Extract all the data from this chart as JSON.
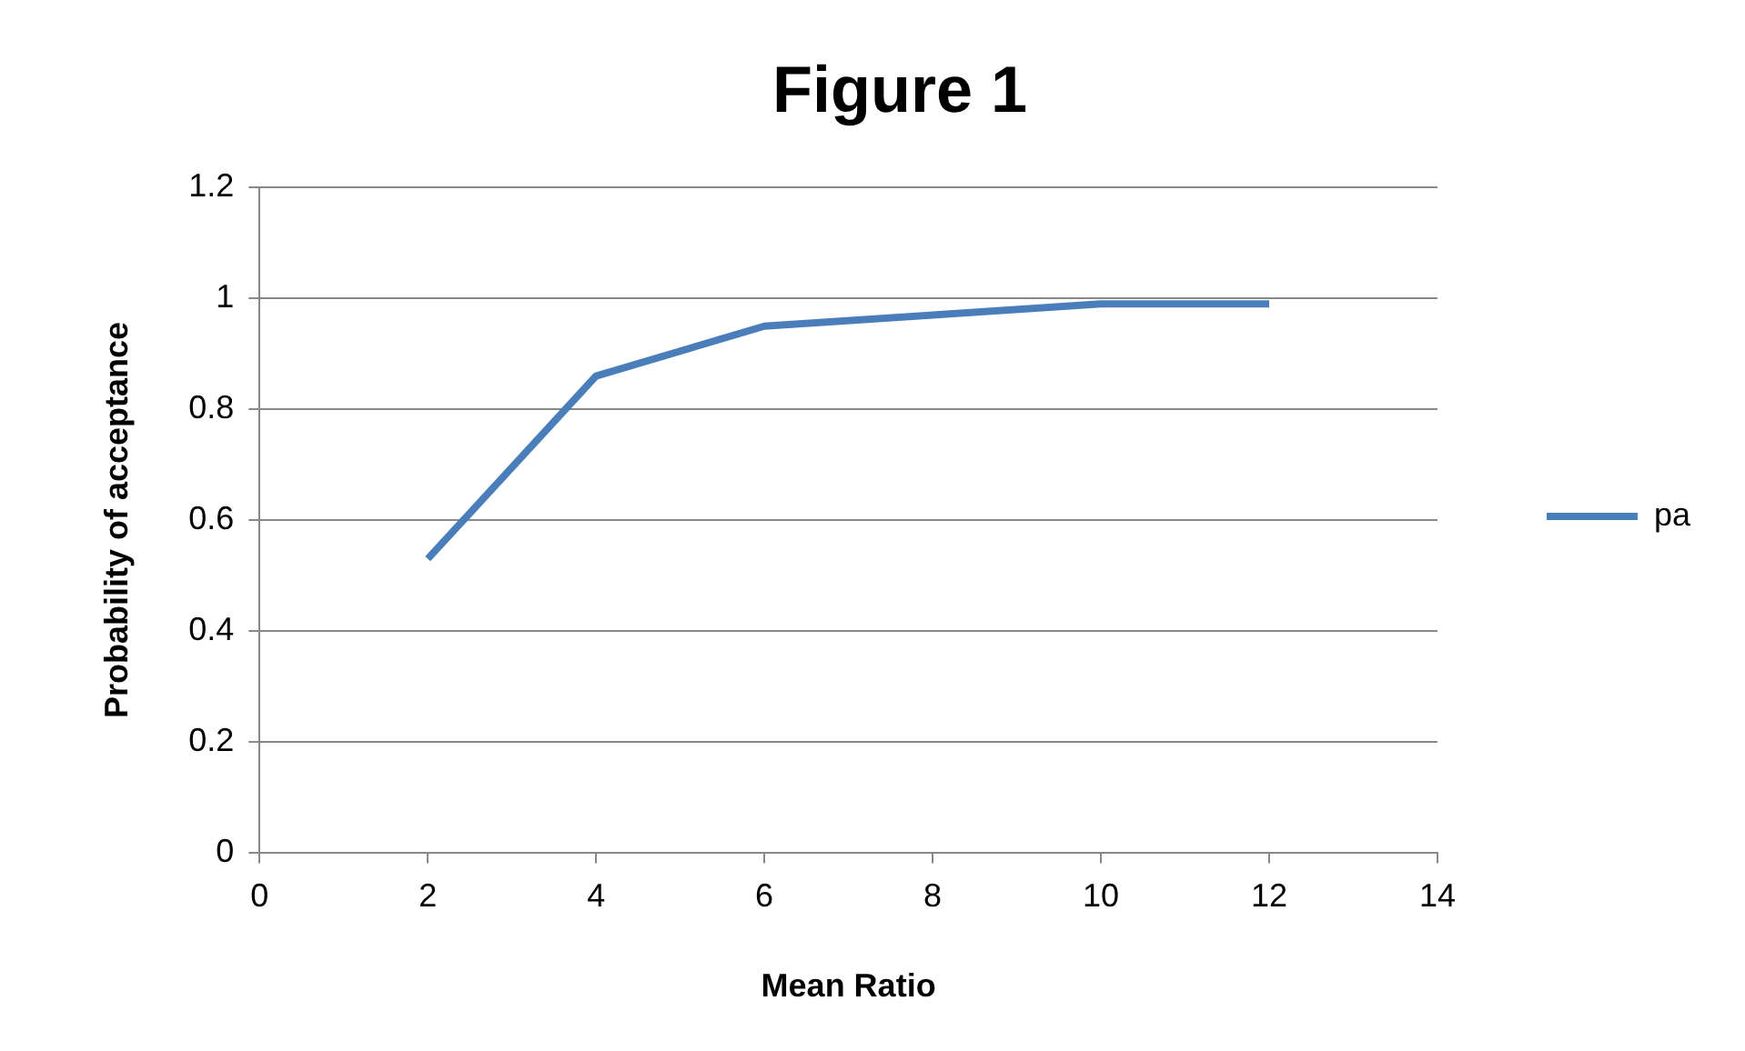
{
  "chart_data": {
    "type": "line",
    "title": "Figure 1",
    "xlabel": "Mean Ratio",
    "ylabel": "Probability of acceptance",
    "x": [
      2,
      4,
      6,
      8,
      10,
      12
    ],
    "series": [
      {
        "name": "pa",
        "color": "#4a7ebb",
        "values": [
          0.53,
          0.86,
          0.95,
          0.97,
          0.99,
          0.99
        ]
      }
    ],
    "xlim": [
      0,
      14
    ],
    "xticks": [
      0,
      2,
      4,
      6,
      8,
      10,
      12,
      14
    ],
    "ylim": [
      0,
      1.2
    ],
    "yticks": [
      0,
      0.2,
      0.4,
      0.6,
      0.8,
      1,
      1.2
    ],
    "grid": "y",
    "legend": "right",
    "marker": "none",
    "line_style": "solid"
  }
}
